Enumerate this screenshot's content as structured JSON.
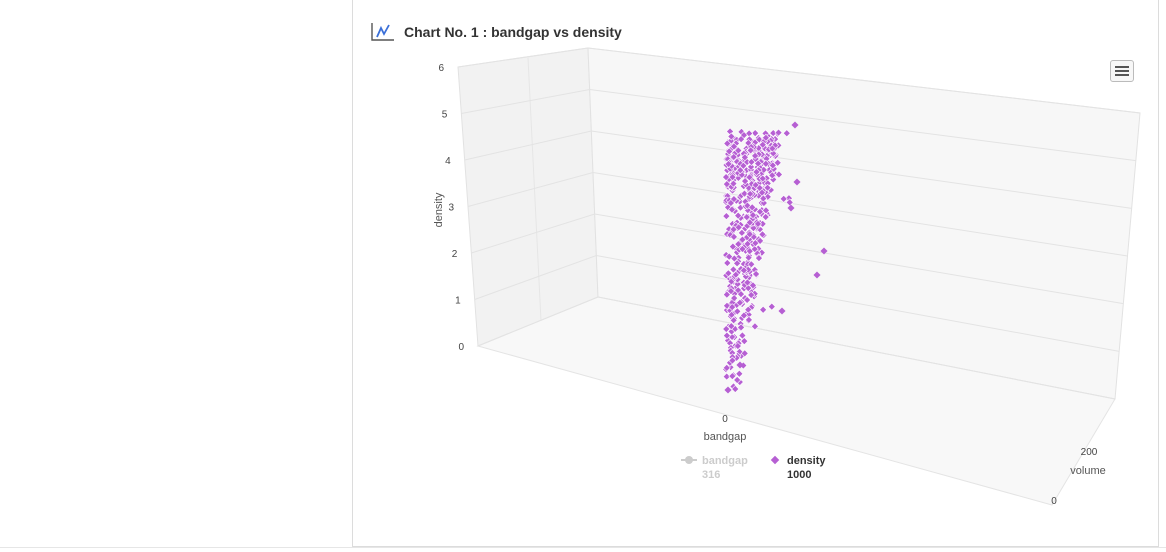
{
  "header": {
    "title": "Chart No. 1 : bandgap vs density",
    "icon": "line-chart-icon"
  },
  "menu": {
    "icon": "hamburger-menu-icon"
  },
  "chart_data": {
    "type": "scatter",
    "title": "Chart No. 1 : bandgap vs density",
    "view": "3d",
    "ylabel": "density",
    "xlabel": "bandgap",
    "zlabel": "volume",
    "ylim": [
      0,
      6
    ],
    "y_ticks": [
      "0",
      "1",
      "2",
      "3",
      "4",
      "5",
      "6"
    ],
    "x_ticks": [
      "0"
    ],
    "z_ticks": [
      "0",
      "200"
    ],
    "grid": true,
    "legend_position": "bottom",
    "series": [
      {
        "name": "bandgap",
        "count_label": "316",
        "visible": false,
        "color": "#cccccc"
      },
      {
        "name": "density",
        "count_label": "1000",
        "visible": true,
        "color": "#b65fd3"
      }
    ]
  }
}
